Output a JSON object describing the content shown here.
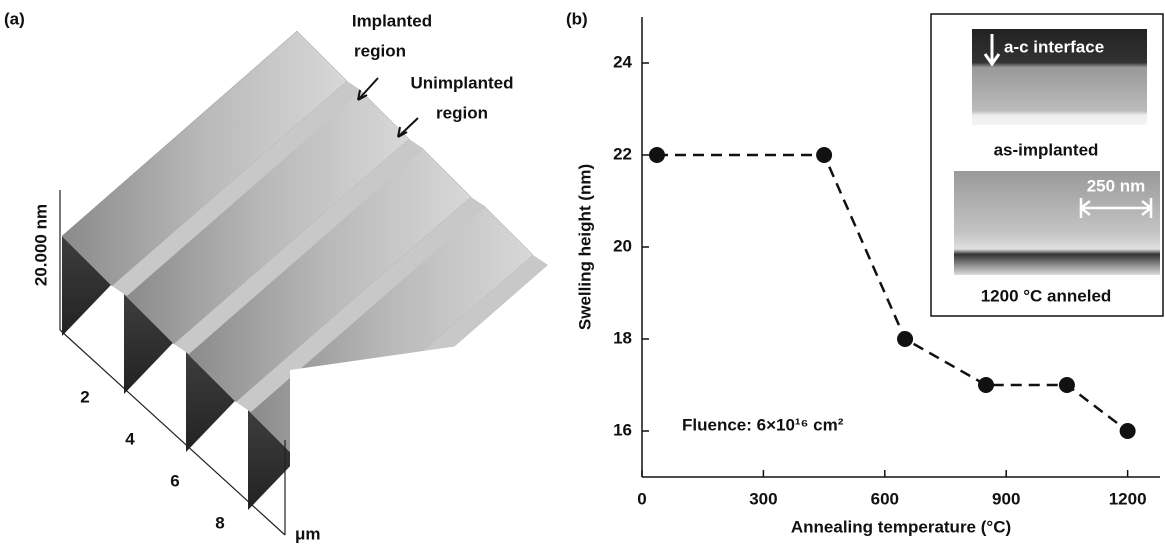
{
  "panel_a": {
    "label": "(a)",
    "z_scale": "20.000 nm",
    "annotations": [
      [
        "Implanted",
        "region"
      ],
      [
        "Unimplanted",
        "region"
      ]
    ],
    "depth_ticks": [
      "2",
      "4",
      "6",
      "8"
    ],
    "unit": "μm"
  },
  "chart_data": {
    "type": "line",
    "panel_label": "(b)",
    "x_label": "Annealing temperature (°C)",
    "y_label": "Swelling height (nm)",
    "x": [
      37,
      450,
      650,
      850,
      1050,
      1200
    ],
    "values": [
      22,
      22,
      18,
      17,
      17,
      16
    ],
    "color": "#111111",
    "linestyle": "dashed",
    "markers": true,
    "xlim": [
      0,
      1280
    ],
    "ylim": [
      15,
      25
    ],
    "xticks": [
      0,
      300,
      600,
      900,
      1200
    ],
    "yticks": [
      16,
      18,
      20,
      22,
      24
    ],
    "annotation": "Fluence: 6×10¹⁶ cm²",
    "inset": {
      "top_label": "a-c interface",
      "top_caption": "as-implanted",
      "scale_bar": "250 nm",
      "bottom_caption": "1200 °C anneled"
    }
  }
}
